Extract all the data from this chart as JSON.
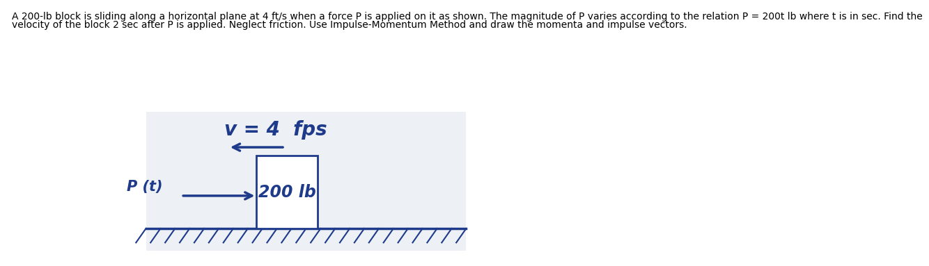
{
  "problem_line1": "A 200-lb block is sliding along a horizontal plane at 4 ft/s when a force P is applied on it as shown. The magnitude of P varies according to the relation P = 200t lb where t is in sec. Find the",
  "problem_line2": "velocity of the block 2 sec after P is applied. Neglect friction. Use Impulse-Momentum Method and draw the momenta and impulse vectors.",
  "background_color": "#ffffff",
  "diagram_bg": "#edf0f5",
  "text_color_problem": "#000000",
  "draw_color": "#1e3a8a",
  "block_label": "200 lb",
  "arrow_label": "P (t)",
  "velocity_label": "v = 4  fps",
  "problem_fontsize": 10.0,
  "draw_fontsize": 17,
  "label_fontsize": 15,
  "vel_fontsize": 20
}
